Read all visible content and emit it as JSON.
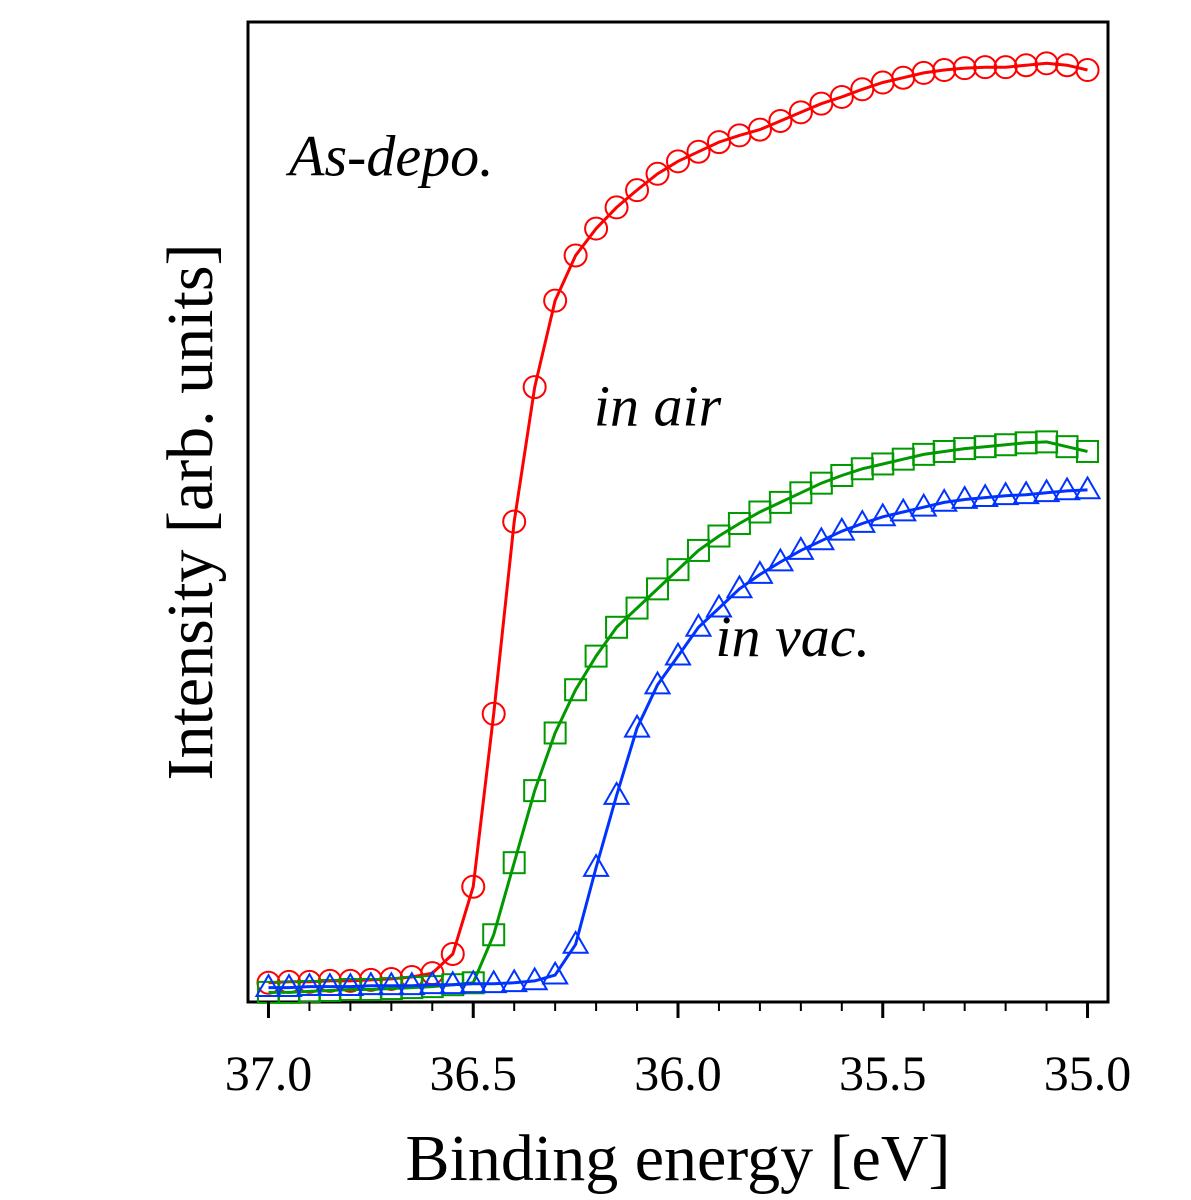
{
  "chart_data": {
    "type": "line",
    "xlabel": "Binding energy [eV]",
    "ylabel": "Intensity [arb. units]",
    "xlim": [
      37.05,
      34.95
    ],
    "xreversed": true,
    "ylim": [
      -0.02,
      1.0
    ],
    "xticks": [
      37.0,
      36.5,
      36.0,
      35.5,
      35.0
    ],
    "xtick_labels": [
      "37.0",
      "36.5",
      "36.0",
      "35.5",
      "35.0"
    ],
    "grid": false,
    "legend": "none",
    "annotations": [
      {
        "text": "As-depo.",
        "x": 36.7,
        "y": 0.84
      },
      {
        "text": "in air",
        "x": 36.05,
        "y": 0.58
      },
      {
        "text": "in vac.",
        "x": 35.72,
        "y": 0.34
      }
    ],
    "series": [
      {
        "color": "#ff0000",
        "marker": "circle",
        "x": [
          37.0,
          36.95,
          36.9,
          36.85,
          36.8,
          36.75,
          36.7,
          36.65,
          36.6,
          36.55,
          36.5,
          36.45,
          36.4,
          36.35,
          36.3,
          36.25,
          36.2,
          36.15,
          36.1,
          36.05,
          36.0,
          35.95,
          35.9,
          35.85,
          35.8,
          35.75,
          35.7,
          35.65,
          35.6,
          35.55,
          35.5,
          35.45,
          35.4,
          35.35,
          35.3,
          35.25,
          35.2,
          35.15,
          35.1,
          35.05,
          35.0
        ],
        "y": [
          0.0,
          0.001,
          0.001,
          0.002,
          0.002,
          0.003,
          0.004,
          0.006,
          0.01,
          0.03,
          0.1,
          0.28,
          0.48,
          0.62,
          0.71,
          0.757,
          0.785,
          0.807,
          0.825,
          0.842,
          0.855,
          0.865,
          0.875,
          0.882,
          0.888,
          0.897,
          0.906,
          0.915,
          0.922,
          0.93,
          0.937,
          0.942,
          0.947,
          0.95,
          0.952,
          0.953,
          0.953,
          0.955,
          0.957,
          0.955,
          0.95
        ]
      },
      {
        "color": "#009900",
        "marker": "square",
        "x": [
          37.0,
          36.95,
          36.9,
          36.85,
          36.8,
          36.75,
          36.7,
          36.65,
          36.6,
          36.55,
          36.5,
          36.45,
          36.4,
          36.35,
          36.3,
          36.25,
          36.2,
          36.15,
          36.1,
          36.05,
          36.0,
          35.95,
          35.9,
          35.85,
          35.8,
          35.75,
          35.7,
          35.65,
          35.6,
          35.55,
          35.5,
          35.45,
          35.4,
          35.35,
          35.3,
          35.25,
          35.2,
          35.15,
          35.1,
          35.05,
          35.0
        ],
        "y": [
          -0.01,
          -0.01,
          -0.009,
          -0.008,
          -0.007,
          -0.007,
          -0.006,
          -0.005,
          -0.004,
          -0.002,
          0.0,
          0.05,
          0.125,
          0.2,
          0.26,
          0.305,
          0.34,
          0.37,
          0.39,
          0.41,
          0.43,
          0.45,
          0.465,
          0.478,
          0.49,
          0.5,
          0.51,
          0.52,
          0.528,
          0.535,
          0.54,
          0.545,
          0.55,
          0.553,
          0.556,
          0.558,
          0.56,
          0.562,
          0.563,
          0.558,
          0.553
        ]
      },
      {
        "color": "#0033ff",
        "marker": "triangle",
        "x": [
          37.0,
          36.95,
          36.9,
          36.85,
          36.8,
          36.75,
          36.7,
          36.65,
          36.6,
          36.55,
          36.5,
          36.45,
          36.4,
          36.35,
          36.3,
          36.25,
          36.2,
          36.15,
          36.1,
          36.05,
          36.0,
          35.95,
          35.9,
          35.85,
          35.8,
          35.75,
          35.7,
          35.65,
          35.6,
          35.55,
          35.5,
          35.45,
          35.4,
          35.35,
          35.3,
          35.25,
          35.2,
          35.15,
          35.1,
          35.05,
          35.0
        ],
        "y": [
          -0.005,
          -0.005,
          -0.004,
          -0.004,
          -0.004,
          -0.003,
          -0.003,
          -0.003,
          -0.002,
          -0.002,
          -0.001,
          -0.001,
          0.0,
          0.002,
          0.008,
          0.04,
          0.12,
          0.195,
          0.265,
          0.31,
          0.34,
          0.37,
          0.39,
          0.41,
          0.425,
          0.438,
          0.45,
          0.46,
          0.47,
          0.478,
          0.485,
          0.49,
          0.495,
          0.5,
          0.503,
          0.505,
          0.507,
          0.508,
          0.51,
          0.512,
          0.513
        ]
      }
    ]
  }
}
